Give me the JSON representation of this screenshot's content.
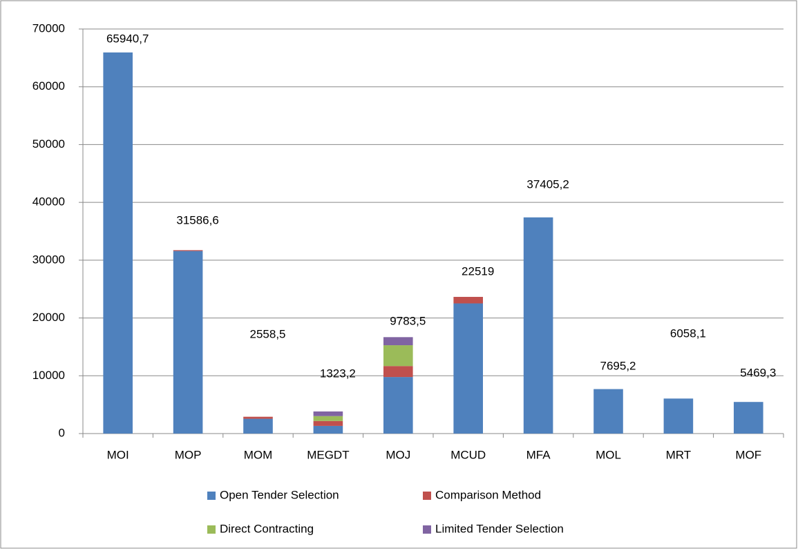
{
  "chart_data": {
    "type": "stacked_bar",
    "categories": [
      "MOI",
      "MOP",
      "MOM",
      "MEGDT",
      "MOJ",
      "MCUD",
      "MFA",
      "MOL",
      "MRT",
      "MOF"
    ],
    "series": [
      {
        "name": "Open Tender Selection",
        "color": "#4f81bd",
        "values": [
          65940.7,
          31586.6,
          2558.5,
          1323.2,
          9783.5,
          22519,
          37405.2,
          7695.2,
          6058.1,
          5469.3
        ],
        "value_labels": [
          "65940,7",
          "31586,6",
          "2558,5",
          "1323,2",
          "9783,5",
          "22519",
          "37405,2",
          "7695,2",
          "6058,1",
          "5469,3"
        ]
      },
      {
        "name": "Comparison Method",
        "color": "#c0504d",
        "values": [
          0,
          150,
          350,
          850,
          1900,
          1130,
          0,
          0,
          0,
          0
        ]
      },
      {
        "name": "Direct Contracting",
        "color": "#9bbb59",
        "values": [
          0,
          0,
          0,
          850,
          3600,
          0,
          0,
          0,
          0,
          0
        ]
      },
      {
        "name": "Limited Tender Selection",
        "color": "#8064a2",
        "values": [
          0,
          0,
          0,
          800,
          1400,
          0,
          0,
          0,
          0,
          0
        ]
      }
    ],
    "ylim": [
      0,
      70000
    ],
    "yticks": [
      0,
      10000,
      20000,
      30000,
      40000,
      50000,
      60000,
      70000
    ],
    "grid": true
  }
}
